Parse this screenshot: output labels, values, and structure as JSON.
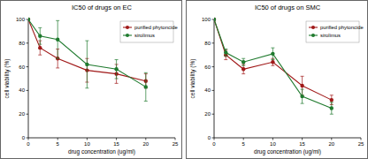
{
  "chart_data": [
    {
      "type": "line",
      "title": "IC50 of drugs on EC",
      "x_label": "drug concentration (ug/ml)",
      "y_label": "cell viability (%)",
      "x": [
        0,
        2,
        5,
        10,
        15,
        20
      ],
      "xlim": [
        0,
        25
      ],
      "xticks": [
        0,
        5,
        10,
        15,
        20,
        25
      ],
      "ylim": [
        0,
        100
      ],
      "yticks": [
        0,
        20,
        40,
        60,
        80,
        100
      ],
      "legend": "upper right",
      "series": [
        {
          "name": "purified phytoncide",
          "color": "#a01818",
          "marker": "circle",
          "values": [
            100,
            76,
            67,
            57,
            54,
            48
          ],
          "errors": [
            0,
            6,
            8,
            10,
            8,
            6
          ]
        },
        {
          "name": "sirolimus",
          "color": "#1f7a2e",
          "marker": "circle",
          "values": [
            100,
            86,
            83,
            62,
            58,
            43
          ],
          "errors": [
            0,
            7,
            16,
            20,
            8,
            12
          ]
        }
      ]
    },
    {
      "type": "line",
      "title": "IC50 of drugs on SMC",
      "x_label": "drug concentration (ug/ml)",
      "y_label": "cell viability (%)",
      "x": [
        0,
        2,
        5,
        10,
        15,
        20
      ],
      "xlim": [
        0,
        25
      ],
      "xticks": [
        0,
        5,
        10,
        15,
        20,
        25
      ],
      "ylim": [
        0,
        100
      ],
      "yticks": [
        0,
        20,
        40,
        60,
        80,
        100
      ],
      "legend": "upper right",
      "series": [
        {
          "name": "purified phytoncide",
          "color": "#a01818",
          "marker": "circle",
          "values": [
            100,
            70,
            58,
            64,
            44,
            32
          ],
          "errors": [
            0,
            4,
            4,
            3,
            8,
            4
          ]
        },
        {
          "name": "sirolimus",
          "color": "#1f7a2e",
          "marker": "circle",
          "values": [
            100,
            72,
            64,
            71,
            35,
            25
          ],
          "errors": [
            0,
            3,
            3,
            5,
            6,
            5
          ]
        }
      ]
    }
  ]
}
